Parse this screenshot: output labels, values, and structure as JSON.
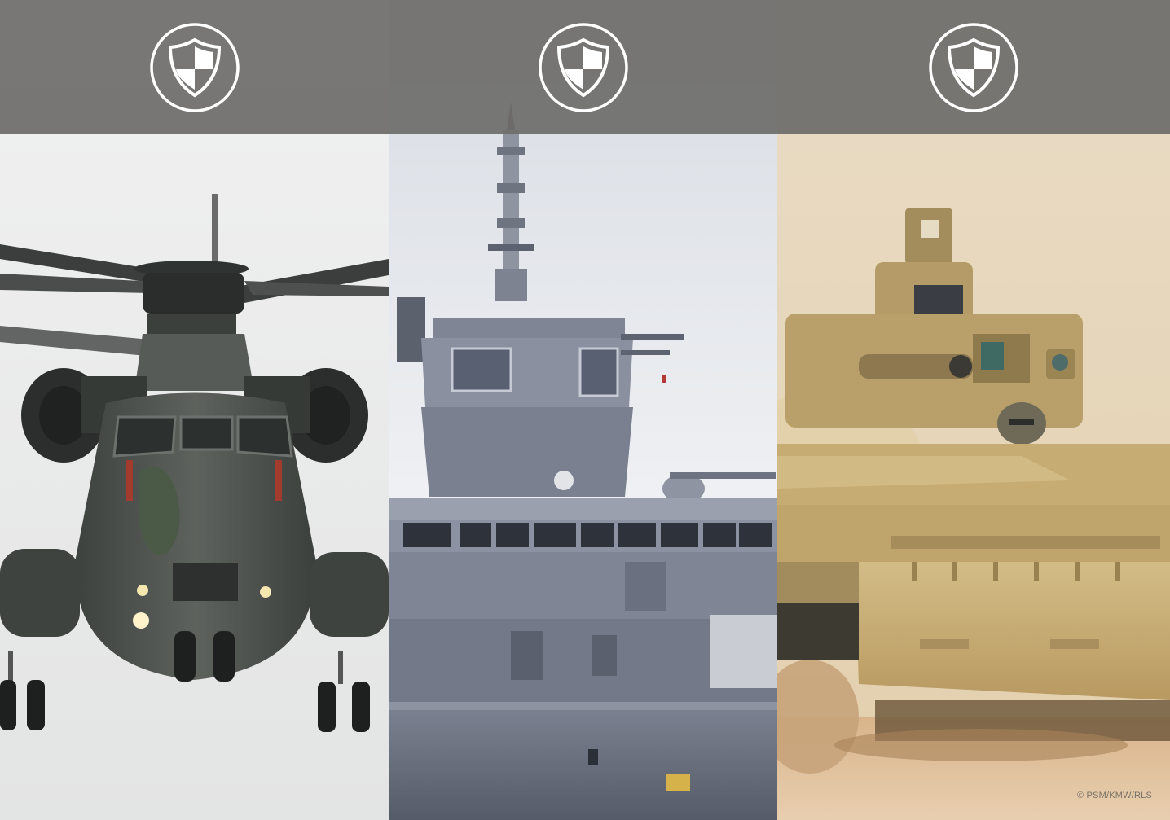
{
  "panels": [
    {
      "subject": "helicopter",
      "emblem_icon": "shield-icon",
      "sky": "#eceded"
    },
    {
      "subject": "warship",
      "emblem_icon": "shield-icon",
      "sky": "#e6e9ee"
    },
    {
      "subject": "armored-vehicle",
      "emblem_icon": "shield-icon",
      "sky": "#ecdcc2"
    }
  ],
  "band_color": "#6f6d6b",
  "credit": "© PSM/KMW/RLS"
}
